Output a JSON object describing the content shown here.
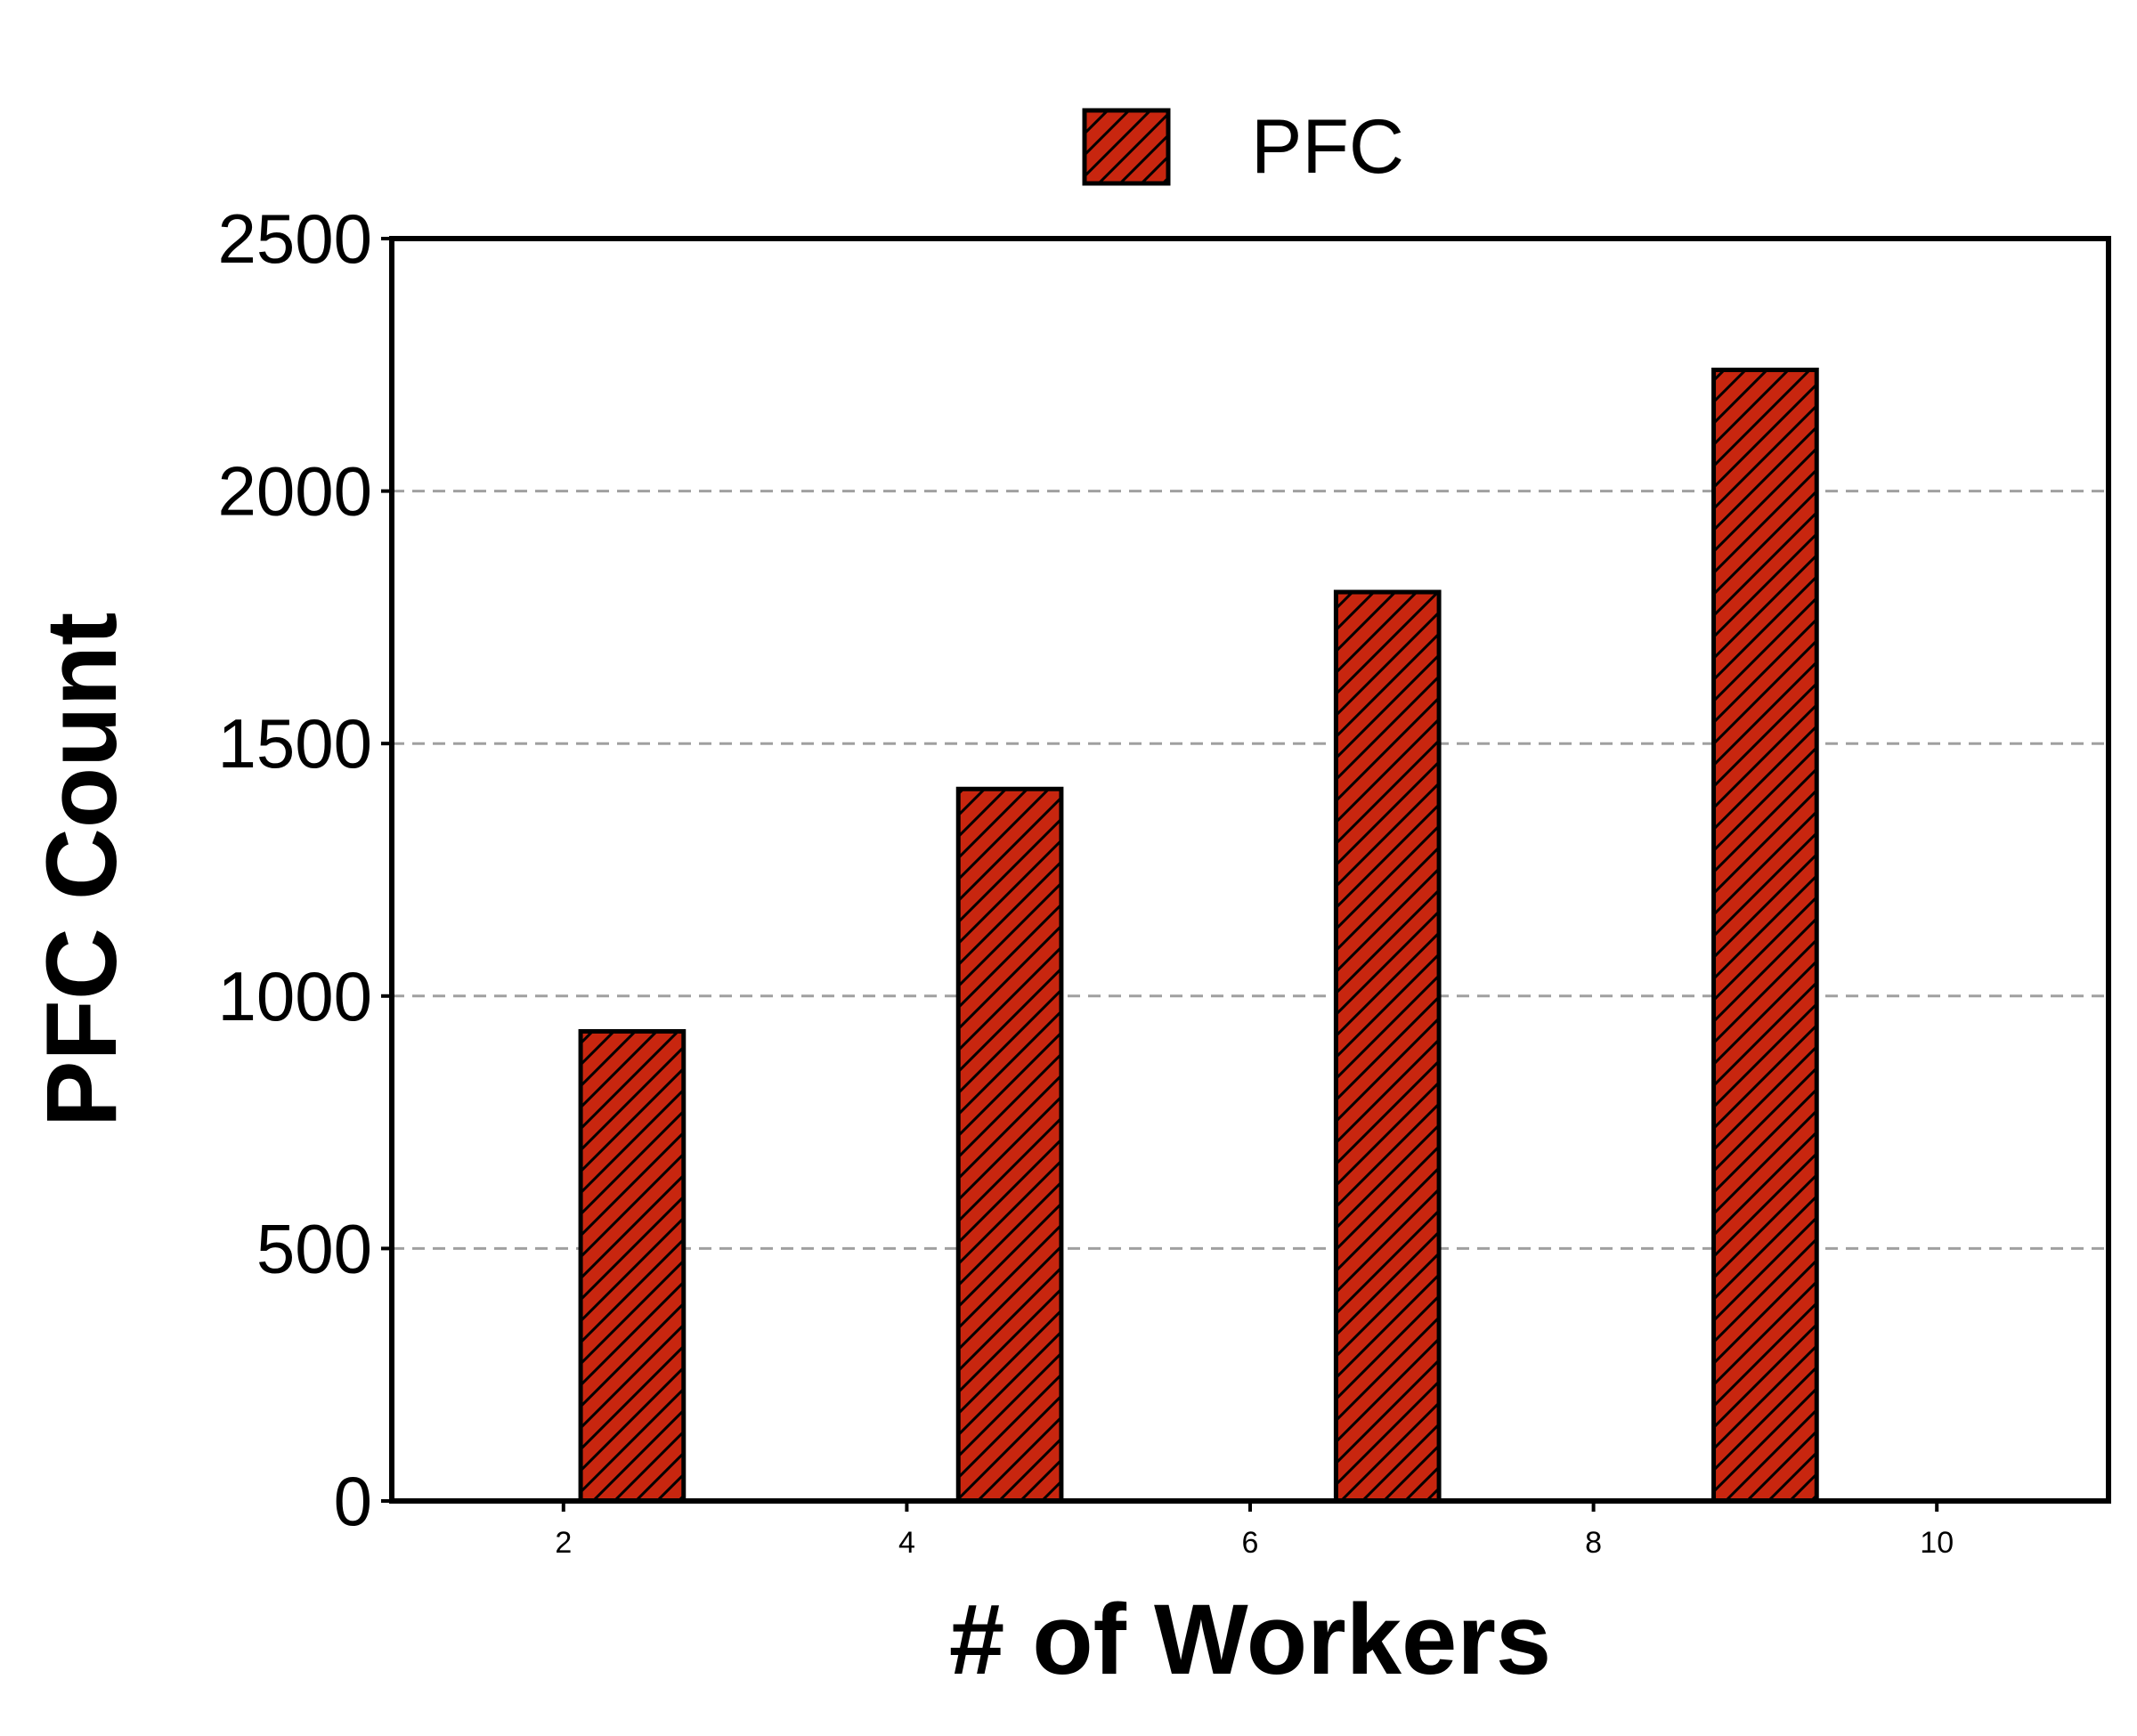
{
  "chart_data": {
    "type": "bar",
    "x": [
      2.4,
      4.6,
      6.8,
      9.0
    ],
    "values": [
      930,
      1410,
      1800,
      2240
    ],
    "series": [
      {
        "name": "PFC",
        "values": [
          930,
          1410,
          1800,
          2240
        ]
      }
    ],
    "xlabel": "# of Workers",
    "ylabel": "PFC Count",
    "xlim": [
      1,
      11
    ],
    "ylim": [
      0,
      2500
    ],
    "xticks": [
      2,
      4,
      6,
      8,
      10
    ],
    "yticks": [
      0,
      500,
      1000,
      1500,
      2000,
      2500
    ],
    "bar_width": 0.6,
    "grid": {
      "y": true,
      "x": false,
      "style": "dashed"
    },
    "legend": {
      "placement": "top-center"
    },
    "colors": {
      "bar_fill": "#c8260f",
      "bar_edge": "#000000",
      "grid": "#a0a0a0"
    },
    "hatch": "///"
  }
}
